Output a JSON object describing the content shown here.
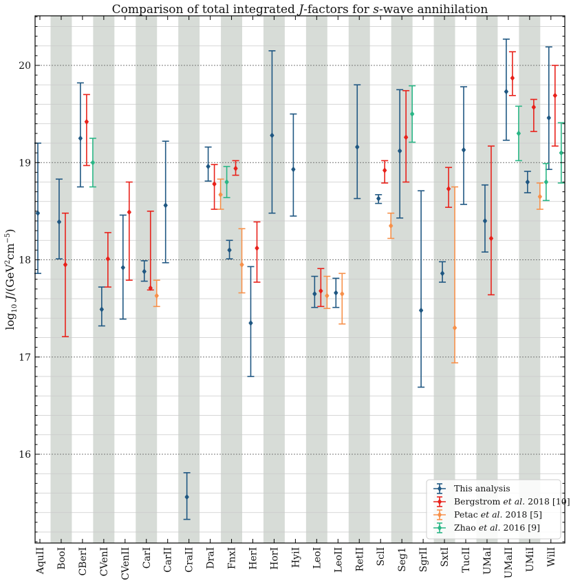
{
  "chart_data": {
    "type": "errorbar",
    "title": "Comparison of total integrated J-factors for s-wave annihilation",
    "ylabel": "log10 J/(GeV^2 cm^-5)",
    "ylim": [
      15.1,
      20.5
    ],
    "yticks": [
      16,
      17,
      18,
      19,
      20
    ],
    "categories": [
      "AquII",
      "BooI",
      "CBerI",
      "CVenI",
      "CVenII",
      "CarI",
      "CarII",
      "CraII",
      "DraI",
      "FnxI",
      "HerI",
      "HorI",
      "HyiI",
      "LeoI",
      "LeoII",
      "RetII",
      "SclI",
      "Seg1",
      "SgrII",
      "SxtI",
      "TucII",
      "UMaI",
      "UMaII",
      "UMiI",
      "WilI"
    ],
    "series": [
      {
        "name": "This analysis",
        "color": "#1f5782",
        "points": [
          {
            "cat": "AquII",
            "value": 18.48,
            "lo": 17.86,
            "hi": 19.2
          },
          {
            "cat": "BooI",
            "value": 18.39,
            "lo": 18.01,
            "hi": 18.83
          },
          {
            "cat": "CBerI",
            "value": 19.25,
            "lo": 18.75,
            "hi": 19.82
          },
          {
            "cat": "CVenI",
            "value": 17.49,
            "lo": 17.32,
            "hi": 17.72
          },
          {
            "cat": "CVenII",
            "value": 17.92,
            "lo": 17.39,
            "hi": 18.46
          },
          {
            "cat": "CarI",
            "value": 17.88,
            "lo": 17.78,
            "hi": 17.99
          },
          {
            "cat": "CarII",
            "value": 18.56,
            "lo": 17.97,
            "hi": 19.22
          },
          {
            "cat": "CraII",
            "value": 15.56,
            "lo": 15.33,
            "hi": 15.81
          },
          {
            "cat": "DraI",
            "value": 18.96,
            "lo": 18.81,
            "hi": 19.16
          },
          {
            "cat": "FnxI",
            "value": 18.1,
            "lo": 18.01,
            "hi": 18.2
          },
          {
            "cat": "HerI",
            "value": 17.35,
            "lo": 16.8,
            "hi": 17.93
          },
          {
            "cat": "HorI",
            "value": 19.28,
            "lo": 18.48,
            "hi": 20.15
          },
          {
            "cat": "HyiI",
            "value": 18.93,
            "lo": 18.45,
            "hi": 19.5
          },
          {
            "cat": "LeoI",
            "value": 17.65,
            "lo": 17.51,
            "hi": 17.83
          },
          {
            "cat": "LeoII",
            "value": 17.66,
            "lo": 17.51,
            "hi": 17.81
          },
          {
            "cat": "RetII",
            "value": 19.16,
            "lo": 18.63,
            "hi": 19.8
          },
          {
            "cat": "SclI",
            "value": 18.63,
            "lo": 18.58,
            "hi": 18.67
          },
          {
            "cat": "Seg1",
            "value": 19.12,
            "lo": 18.43,
            "hi": 19.75
          },
          {
            "cat": "SgrII",
            "value": 17.48,
            "lo": 16.69,
            "hi": 18.71
          },
          {
            "cat": "SxtI",
            "value": 17.86,
            "lo": 17.77,
            "hi": 17.98
          },
          {
            "cat": "TucII",
            "value": 19.13,
            "lo": 18.57,
            "hi": 19.78
          },
          {
            "cat": "UMaI",
            "value": 18.4,
            "lo": 18.08,
            "hi": 18.77
          },
          {
            "cat": "UMaII",
            "value": 19.73,
            "lo": 19.23,
            "hi": 20.27
          },
          {
            "cat": "UMiI",
            "value": 18.8,
            "lo": 18.69,
            "hi": 18.91
          },
          {
            "cat": "WilI",
            "value": 19.46,
            "lo": 18.93,
            "hi": 20.19
          }
        ]
      },
      {
        "name": "Bergstrom et al. 2018 [10]",
        "color": "#e8211a",
        "points": [
          {
            "cat": "BooI",
            "value": 17.95,
            "lo": 17.21,
            "hi": 18.48
          },
          {
            "cat": "CBerI",
            "value": 19.42,
            "lo": 18.97,
            "hi": 19.7
          },
          {
            "cat": "CVenI",
            "value": 18.01,
            "lo": 17.72,
            "hi": 18.28
          },
          {
            "cat": "CVenII",
            "value": 18.49,
            "lo": 17.79,
            "hi": 18.8
          },
          {
            "cat": "CarI",
            "value": 17.71,
            "lo": 17.69,
            "hi": 18.5
          },
          {
            "cat": "DraI",
            "value": 18.78,
            "lo": 18.52,
            "hi": 18.98
          },
          {
            "cat": "FnxI",
            "value": 18.94,
            "lo": 18.87,
            "hi": 19.02
          },
          {
            "cat": "HerI",
            "value": 18.12,
            "lo": 17.77,
            "hi": 18.39
          },
          {
            "cat": "LeoI",
            "value": 17.68,
            "lo": 17.52,
            "hi": 17.91
          },
          {
            "cat": "SclI",
            "value": 18.92,
            "lo": 18.79,
            "hi": 19.02
          },
          {
            "cat": "Seg1",
            "value": 19.26,
            "lo": 18.8,
            "hi": 19.74
          },
          {
            "cat": "SxtI",
            "value": 18.73,
            "lo": 18.54,
            "hi": 18.95
          },
          {
            "cat": "UMaI",
            "value": 18.22,
            "lo": 17.64,
            "hi": 19.17
          },
          {
            "cat": "UMaII",
            "value": 19.87,
            "lo": 19.69,
            "hi": 20.14
          },
          {
            "cat": "UMiI",
            "value": 19.57,
            "lo": 19.32,
            "hi": 19.65
          },
          {
            "cat": "WilI",
            "value": 19.69,
            "lo": 19.17,
            "hi": 20.0
          }
        ]
      },
      {
        "name": "Petac et al. 2018 [5]",
        "color": "#f7904a",
        "points": [
          {
            "cat": "CarI",
            "value": 17.63,
            "lo": 17.52,
            "hi": 17.79
          },
          {
            "cat": "DraI",
            "value": 18.67,
            "lo": 18.52,
            "hi": 18.83
          },
          {
            "cat": "FnxI",
            "value": 17.95,
            "lo": 17.66,
            "hi": 18.32
          },
          {
            "cat": "LeoI",
            "value": 17.63,
            "lo": 17.5,
            "hi": 17.83
          },
          {
            "cat": "LeoII",
            "value": 17.65,
            "lo": 17.34,
            "hi": 17.86
          },
          {
            "cat": "SclI",
            "value": 18.35,
            "lo": 18.22,
            "hi": 18.48
          },
          {
            "cat": "SxtI",
            "value": 17.3,
            "lo": 16.94,
            "hi": 18.75
          },
          {
            "cat": "UMiI",
            "value": 18.65,
            "lo": 18.52,
            "hi": 18.79
          }
        ]
      },
      {
        "name": "Zhao et al. 2016 [9]",
        "color": "#2ab686",
        "points": [
          {
            "cat": "CBerI",
            "value": 19.0,
            "lo": 18.75,
            "hi": 19.25
          },
          {
            "cat": "DraI",
            "value": 18.8,
            "lo": 18.64,
            "hi": 18.96
          },
          {
            "cat": "Seg1",
            "value": 19.5,
            "lo": 19.21,
            "hi": 19.79
          },
          {
            "cat": "UMaII",
            "value": 19.3,
            "lo": 19.02,
            "hi": 19.58
          },
          {
            "cat": "UMiI",
            "value": 18.8,
            "lo": 18.61,
            "hi": 18.99
          },
          {
            "cat": "WilI",
            "value": 19.1,
            "lo": 18.79,
            "hi": 19.41
          }
        ]
      }
    ],
    "legend": {
      "position": "lower-right",
      "entries": [
        {
          "pre": "This analysis",
          "em": "",
          "post": ""
        },
        {
          "pre": "Bergstrom ",
          "em": "et al.",
          "post": " 2018 [10]"
        },
        {
          "pre": "Petac ",
          "em": "et al.",
          "post": " 2018 [5]"
        },
        {
          "pre": "Zhao ",
          "em": "et al.",
          "post": " 2016 [9]"
        }
      ]
    },
    "band_color": "#d7dcd7"
  }
}
